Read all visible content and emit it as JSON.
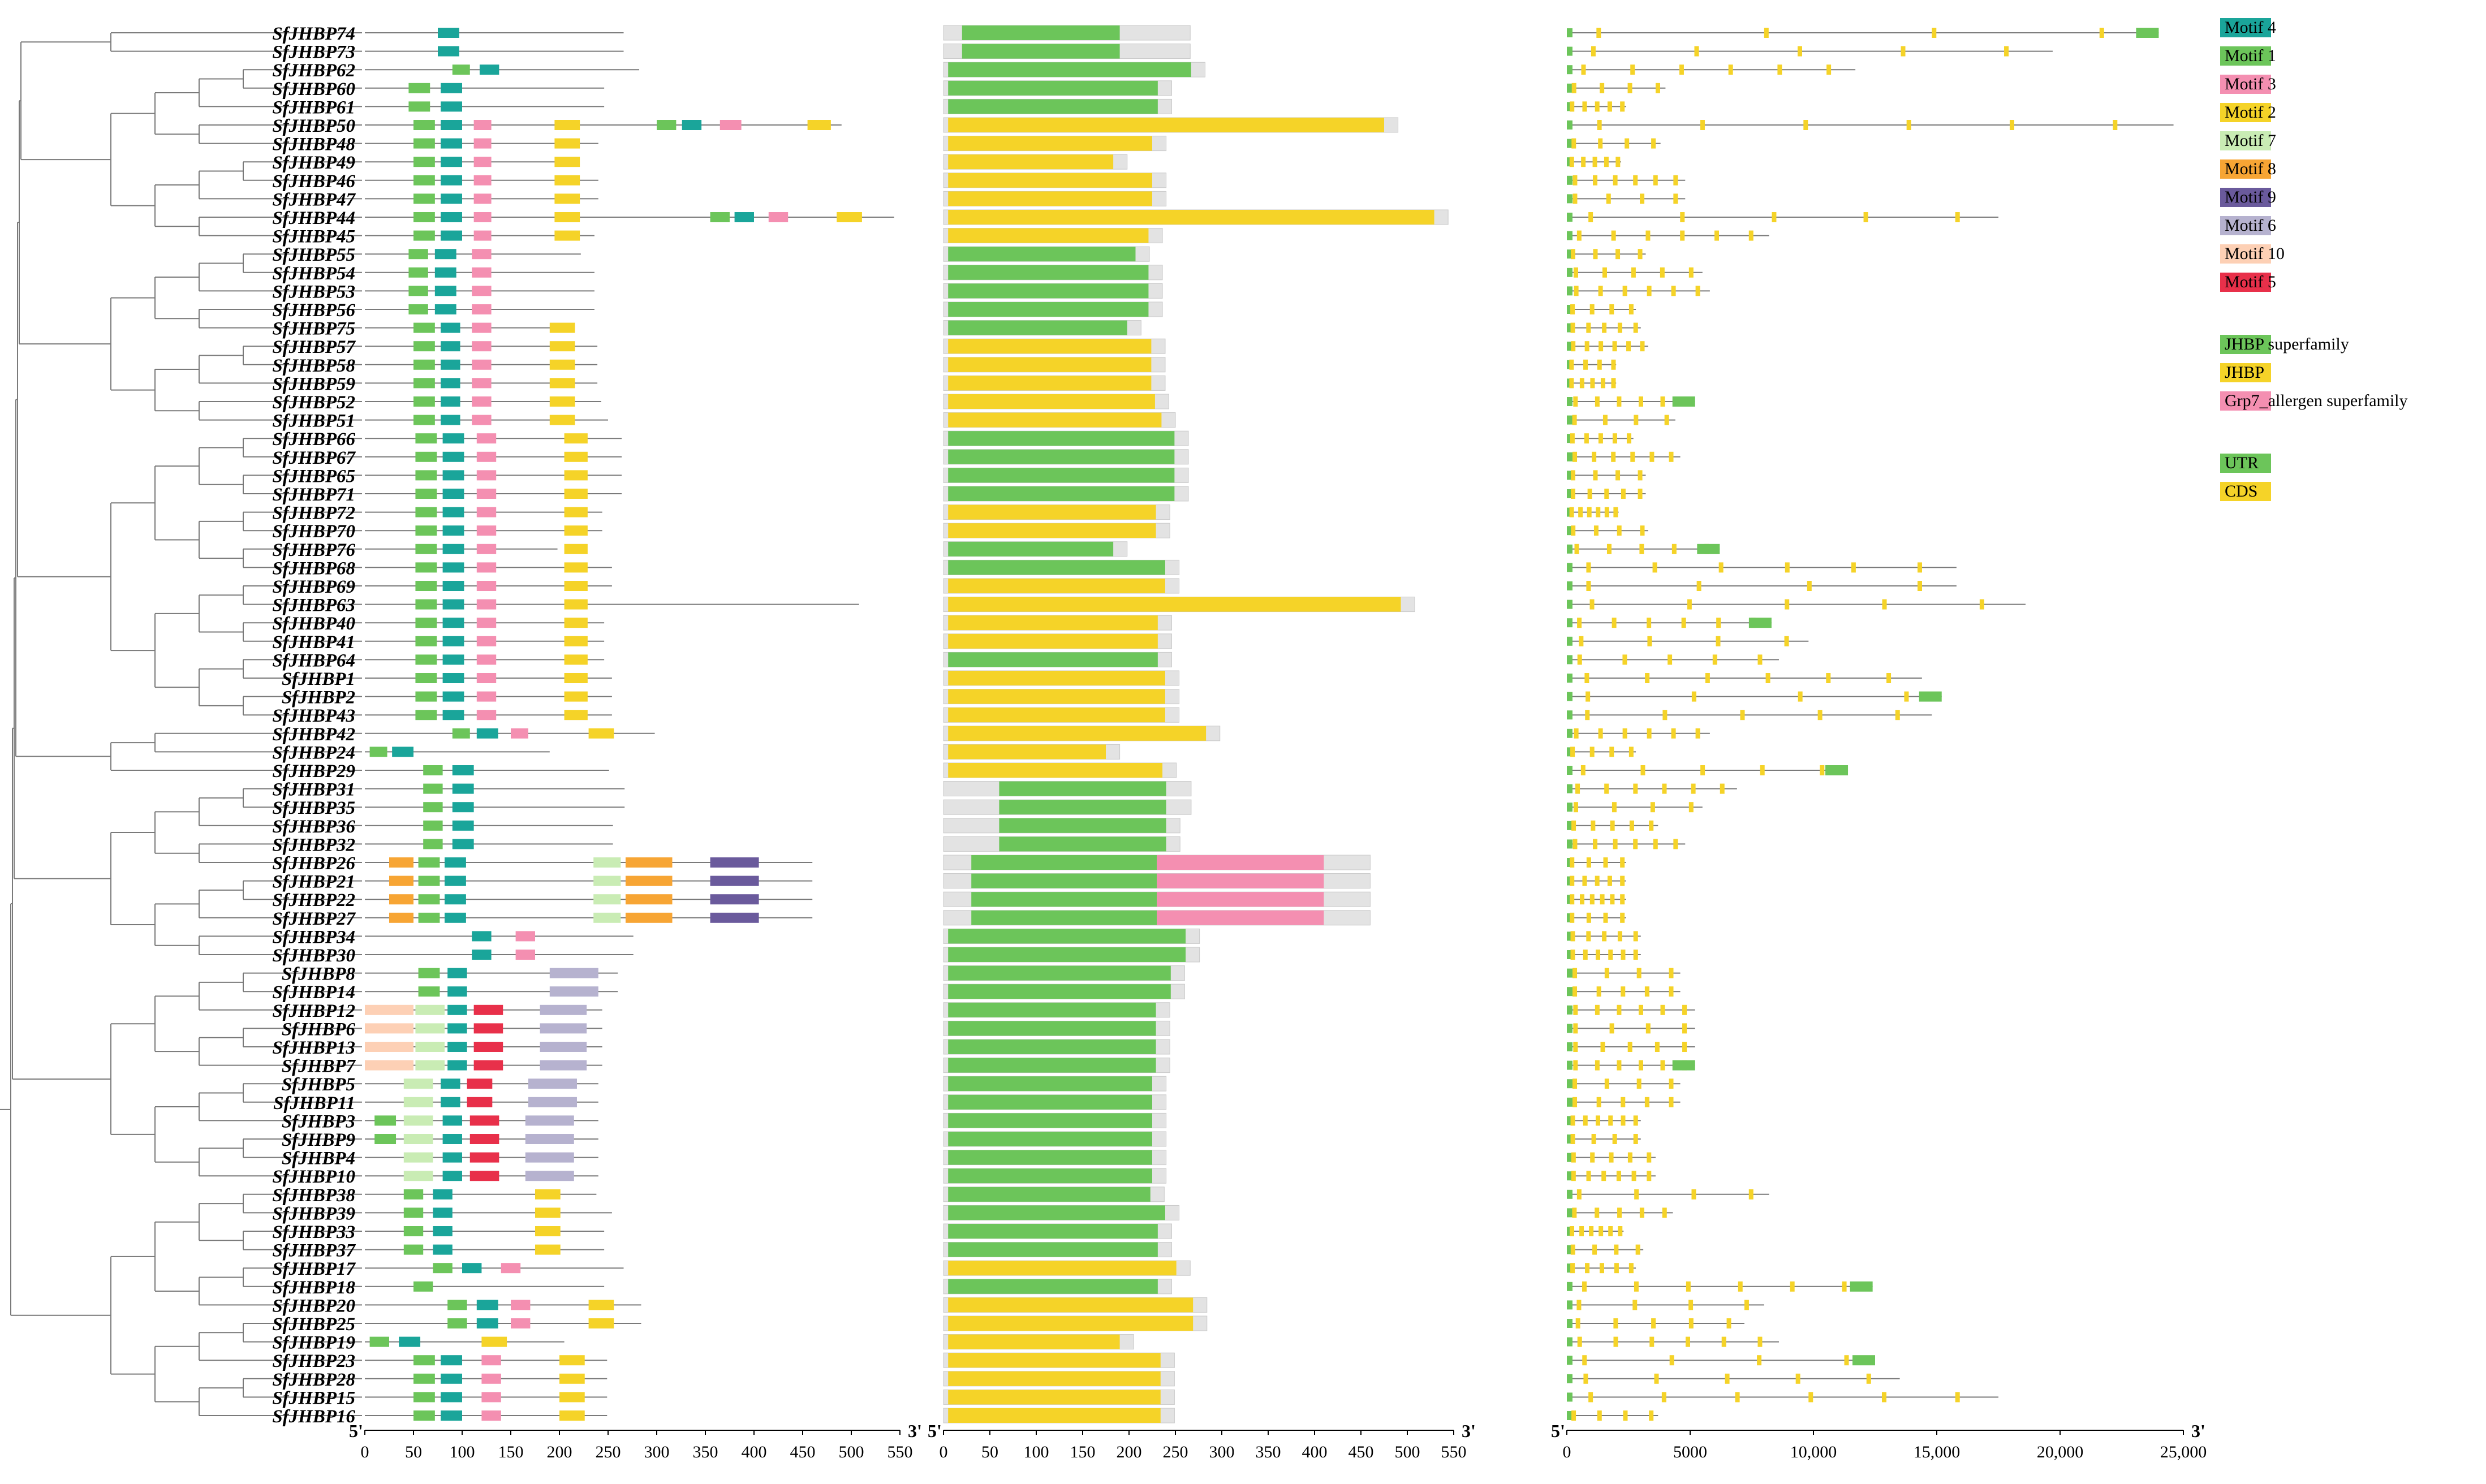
{
  "genes": [
    "SfJHBP74",
    "SfJHBP73",
    "SfJHBP62",
    "SfJHBP60",
    "SfJHBP61",
    "SfJHBP50",
    "SfJHBP48",
    "SfJHBP49",
    "SfJHBP46",
    "SfJHBP47",
    "SfJHBP44",
    "SfJHBP45",
    "SfJHBP55",
    "SfJHBP54",
    "SfJHBP53",
    "SfJHBP56",
    "SfJHBP75",
    "SfJHBP57",
    "SfJHBP58",
    "SfJHBP59",
    "SfJHBP52",
    "SfJHBP51",
    "SfJHBP66",
    "SfJHBP67",
    "SfJHBP65",
    "SfJHBP71",
    "SfJHBP72",
    "SfJHBP70",
    "SfJHBP76",
    "SfJHBP68",
    "SfJHBP69",
    "SfJHBP63",
    "SfJHBP40",
    "SfJHBP41",
    "SfJHBP64",
    "SfJHBP1",
    "SfJHBP2",
    "SfJHBP43",
    "SfJHBP42",
    "SfJHBP24",
    "SfJHBP29",
    "SfJHBP31",
    "SfJHBP35",
    "SfJHBP36",
    "SfJHBP32",
    "SfJHBP26",
    "SfJHBP21",
    "SfJHBP22",
    "SfJHBP27",
    "SfJHBP34",
    "SfJHBP30",
    "SfJHBP8",
    "SfJHBP14",
    "SfJHBP12",
    "SfJHBP6",
    "SfJHBP13",
    "SfJHBP7",
    "SfJHBP5",
    "SfJHBP11",
    "SfJHBP3",
    "SfJHBP9",
    "SfJHBP4",
    "SfJHBP10",
    "SfJHBP38",
    "SfJHBP39",
    "SfJHBP33",
    "SfJHBP37",
    "SfJHBP17",
    "SfJHBP18",
    "SfJHBP20",
    "SfJHBP25",
    "SfJHBP19",
    "SfJHBP23",
    "SfJHBP28",
    "SfJHBP15",
    "SfJHBP16"
  ],
  "colors": {
    "motif4": "#1aa59a",
    "motif1": "#6cc55a",
    "motif3": "#f48fb1",
    "motif2": "#f5d328",
    "motif7": "#c9ecb4",
    "motif8": "#f7a534",
    "motif9": "#6a5a9c",
    "motif6": "#b6b2cf",
    "motif10": "#fdd0b5",
    "motif5": "#e8304a",
    "jhbp_super": "#6cc55a",
    "jhbp": "#f5d328",
    "grp7": "#f48fb1",
    "utr": "#6cc55a",
    "cds": "#f5d328",
    "line": "#7a7a7a",
    "box_bg": "#e3e3e3"
  },
  "legend": {
    "motifs": [
      {
        "key": "motif4",
        "label": "Motif 4"
      },
      {
        "key": "motif1",
        "label": "Motif 1"
      },
      {
        "key": "motif3",
        "label": "Motif 3"
      },
      {
        "key": "motif2",
        "label": "Motif 2"
      },
      {
        "key": "motif7",
        "label": "Motif 7"
      },
      {
        "key": "motif8",
        "label": "Motif 8"
      },
      {
        "key": "motif9",
        "label": "Motif 9"
      },
      {
        "key": "motif6",
        "label": "Motif 6"
      },
      {
        "key": "motif10",
        "label": "Motif 10"
      },
      {
        "key": "motif5",
        "label": "Motif 5"
      }
    ],
    "domains": [
      {
        "key": "jhbp_super",
        "label": "JHBP superfamily"
      },
      {
        "key": "jhbp",
        "label": "JHBP"
      },
      {
        "key": "grp7",
        "label": "Grp7_allergen superfamily"
      }
    ],
    "structure": [
      {
        "key": "utr",
        "label": "UTR"
      },
      {
        "key": "cds",
        "label": "CDS"
      }
    ]
  },
  "axes": {
    "five_prime": "5'",
    "three_prime": "3'",
    "motif_ticks": [
      "0",
      "50",
      "100",
      "150",
      "200",
      "250",
      "300",
      "350",
      "400",
      "450",
      "500",
      "550"
    ],
    "domain_ticks": [
      "0",
      "50",
      "100",
      "150",
      "200",
      "250",
      "300",
      "350",
      "400",
      "450",
      "500",
      "550"
    ],
    "gene_ticks": [
      "0",
      "5000",
      "10,000",
      "15,000",
      "20,000",
      "25,000"
    ]
  }
}
